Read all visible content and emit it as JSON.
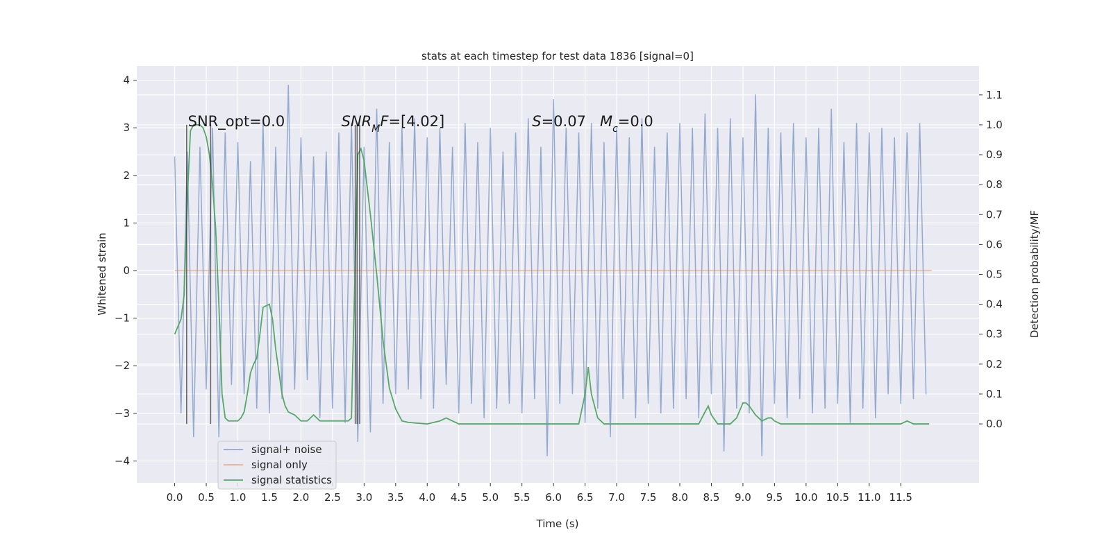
{
  "chart_data": {
    "type": "line",
    "title": "stats at each timestep for test data 1836 [signal=0]",
    "xlabel": "Time (s)",
    "ylabel": "Whitened strain",
    "y2label": "Detection probability/MF",
    "xlim": [
      -0.6,
      12.74
    ],
    "ylim": [
      -4.46,
      4.3
    ],
    "y2lim": [
      -0.197,
      1.197
    ],
    "grid": true,
    "legend": "lower left",
    "xticks": [
      {
        "value": 0,
        "label": "0.0"
      },
      {
        "value": 0.5,
        "label": "0.5"
      },
      {
        "value": 1,
        "label": "1.0"
      },
      {
        "value": 1.5,
        "label": "1.5"
      },
      {
        "value": 2,
        "label": "2.0"
      },
      {
        "value": 2.5,
        "label": "2.5"
      },
      {
        "value": 3,
        "label": "3.0"
      },
      {
        "value": 3.5,
        "label": "3.5"
      },
      {
        "value": 4,
        "label": "4.0"
      },
      {
        "value": 4.5,
        "label": "4.5"
      },
      {
        "value": 5,
        "label": "5.0"
      },
      {
        "value": 5.5,
        "label": "5.5"
      },
      {
        "value": 6,
        "label": "6.0"
      },
      {
        "value": 6.5,
        "label": "6.5"
      },
      {
        "value": 7,
        "label": "7.0"
      },
      {
        "value": 7.5,
        "label": "7.5"
      },
      {
        "value": 8,
        "label": "8.0"
      },
      {
        "value": 8.5,
        "label": "8.5"
      },
      {
        "value": 9,
        "label": "9.0"
      },
      {
        "value": 9.5,
        "label": "9.5"
      },
      {
        "value": 10,
        "label": "10.0"
      },
      {
        "value": 10.5,
        "label": "10.5"
      },
      {
        "value": 11,
        "label": "11.0"
      },
      {
        "value": 11.5,
        "label": "11.5"
      }
    ],
    "yticks": [
      {
        "value": -4,
        "label": "−4"
      },
      {
        "value": -3,
        "label": "−3"
      },
      {
        "value": -2,
        "label": "−2"
      },
      {
        "value": -1,
        "label": "−1"
      },
      0,
      1,
      2,
      3,
      4
    ],
    "y2ticks": [
      {
        "value": 0,
        "label": "0.0"
      },
      {
        "value": 0.1,
        "label": "0.1"
      },
      {
        "value": 0.2,
        "label": "0.2"
      },
      {
        "value": 0.3,
        "label": "0.3"
      },
      {
        "value": 0.4,
        "label": "0.4"
      },
      {
        "value": 0.5,
        "label": "0.5"
      },
      {
        "value": 0.6,
        "label": "0.6"
      },
      {
        "value": 0.7,
        "label": "0.7"
      },
      {
        "value": 0.8,
        "label": "0.8"
      },
      {
        "value": 0.9,
        "label": "0.9"
      },
      {
        "value": 1,
        "label": "1.0"
      },
      {
        "value": 1.1,
        "label": "1.1"
      }
    ],
    "series": [
      {
        "name": "signal+ noise",
        "color": "#4c72b0",
        "opacity": 0.55,
        "x": [
          0,
          0.1,
          0.2,
          0.3,
          0.4,
          0.5,
          0.6,
          0.7,
          0.8,
          0.9,
          1,
          1.1,
          1.2,
          1.3,
          1.4,
          1.5,
          1.6,
          1.7,
          1.8,
          1.9,
          2,
          2.1,
          2.2,
          2.3,
          2.4,
          2.5,
          2.6,
          2.7,
          2.8,
          2.9,
          3,
          3.1,
          3.2,
          3.3,
          3.4,
          3.5,
          3.6,
          3.7,
          3.8,
          3.9,
          4,
          4.1,
          4.2,
          4.3,
          4.4,
          4.5,
          4.6,
          4.7,
          4.8,
          4.9,
          5,
          5.1,
          5.2,
          5.3,
          5.4,
          5.5,
          5.6,
          5.7,
          5.8,
          5.9,
          6,
          6.1,
          6.2,
          6.3,
          6.4,
          6.5,
          6.6,
          6.7,
          6.8,
          6.9,
          7,
          7.1,
          7.2,
          7.3,
          7.4,
          7.5,
          7.6,
          7.7,
          7.8,
          7.9,
          8,
          8.1,
          8.2,
          8.3,
          8.4,
          8.5,
          8.6,
          8.7,
          8.8,
          8.9,
          9,
          9.1,
          9.2,
          9.3,
          9.4,
          9.5,
          9.6,
          9.7,
          9.8,
          9.9,
          10,
          10.1,
          10.2,
          10.3,
          10.4,
          10.5,
          10.6,
          10.7,
          10.8,
          10.9,
          11,
          11.1,
          11.2,
          11.3,
          11.4,
          11.5,
          11.6,
          11.7,
          11.8,
          11.9
        ],
        "values": [
          2.4,
          -3.0,
          2.5,
          -3.5,
          2.6,
          -2.5,
          3.0,
          -3.5,
          2.9,
          -2.4,
          2.7,
          -2.6,
          2.3,
          -2.9,
          3.1,
          -3.0,
          2.6,
          -2.7,
          3.9,
          -2.5,
          2.8,
          -2.3,
          2.4,
          -3.1,
          2.5,
          -2.9,
          2.9,
          -3.2,
          3.1,
          -3.6,
          2.6,
          -3.4,
          3.4,
          -2.8,
          2.7,
          -2.6,
          3.0,
          -2.5,
          3.2,
          -2.7,
          2.8,
          -2.9,
          3.0,
          -2.4,
          2.6,
          -3.0,
          3.1,
          -2.8,
          2.7,
          -3.1,
          3.0,
          -2.9,
          2.5,
          -2.8,
          2.9,
          -3.0,
          3.2,
          -2.7,
          2.6,
          -3.9,
          3.6,
          -2.8,
          3.0,
          -2.6,
          2.9,
          -3.2,
          3.1,
          -2.9,
          2.7,
          -3.5,
          3.0,
          -2.7,
          2.8,
          -3.1,
          3.2,
          -2.8,
          2.6,
          -3.0,
          2.9,
          -2.9,
          3.1,
          -2.7,
          3.0,
          -3.1,
          3.3,
          -2.6,
          3.0,
          -3.8,
          3.2,
          -2.9,
          2.8,
          -3.0,
          3.7,
          -3.9,
          3.0,
          -2.8,
          2.9,
          -3.1,
          3.1,
          -2.7,
          2.8,
          -3.0,
          3.0,
          -2.9,
          3.4,
          -2.8,
          2.7,
          -3.2,
          3.1,
          -2.9,
          2.9,
          -3.1,
          3.0,
          -2.6,
          2.8,
          -2.8,
          2.9,
          -2.7,
          3.1,
          -2.6
        ]
      },
      {
        "name": "signal only",
        "color": "#dd8452",
        "opacity": 0.55,
        "x": [
          0,
          11.99
        ],
        "values": [
          0,
          0
        ]
      },
      {
        "name": "signal statistics",
        "color": "#55a868",
        "opacity": 1,
        "axis": "y2",
        "x": [
          0,
          0.1,
          0.15,
          0.2,
          0.25,
          0.3,
          0.4,
          0.45,
          0.5,
          0.55,
          0.6,
          0.65,
          0.7,
          0.75,
          0.8,
          0.85,
          0.9,
          1.0,
          1.05,
          1.1,
          1.15,
          1.2,
          1.25,
          1.3,
          1.35,
          1.4,
          1.5,
          1.55,
          1.6,
          1.7,
          1.75,
          1.8,
          1.9,
          2.0,
          2.1,
          2.2,
          2.3,
          2.4,
          2.5,
          2.6,
          2.65,
          2.75,
          2.8,
          2.9,
          2.95,
          3.0,
          3.1,
          3.2,
          3.3,
          3.4,
          3.5,
          3.6,
          3.7,
          4.0,
          4.2,
          4.3,
          4.4,
          4.5,
          5.5,
          6.0,
          6.4,
          6.5,
          6.55,
          6.6,
          6.7,
          6.8,
          8.3,
          8.4,
          8.45,
          8.5,
          8.6,
          8.8,
          8.9,
          9.0,
          9.05,
          9.1,
          9.2,
          9.3,
          9.4,
          9.45,
          9.5,
          9.6,
          10.0,
          11.5,
          11.6,
          11.7,
          11.95
        ],
        "values": [
          0.3,
          0.35,
          0.43,
          0.75,
          0.98,
          1.0,
          1.0,
          0.99,
          0.96,
          0.9,
          0.8,
          0.65,
          0.4,
          0.1,
          0.02,
          0.01,
          0.01,
          0.01,
          0.02,
          0.04,
          0.1,
          0.17,
          0.2,
          0.22,
          0.3,
          0.39,
          0.4,
          0.35,
          0.25,
          0.1,
          0.06,
          0.04,
          0.03,
          0.01,
          0.01,
          0.03,
          0.01,
          0.01,
          0.01,
          0.01,
          0.01,
          0.01,
          0.02,
          0.9,
          0.92,
          0.88,
          0.7,
          0.5,
          0.28,
          0.12,
          0.05,
          0.01,
          0.005,
          0,
          0.01,
          0.02,
          0.01,
          0,
          0,
          0,
          0,
          0.1,
          0.19,
          0.1,
          0.02,
          0,
          0,
          0.04,
          0.06,
          0.03,
          0,
          0,
          0.02,
          0.07,
          0.07,
          0.06,
          0.03,
          0.01,
          0.02,
          0.02,
          0.01,
          0,
          0,
          0,
          0.01,
          0,
          0
        ]
      }
    ],
    "vlines": {
      "color": "#333333",
      "x": [
        0.19,
        0.57,
        2.86,
        2.89,
        2.93
      ],
      "y2": [
        0,
        1.0
      ]
    },
    "annotations": [
      {
        "x": 0.21,
        "y": 3.03,
        "parts": [
          {
            "t": "SNR_opt=0.0"
          }
        ]
      },
      {
        "x": 2.64,
        "y": 3.03,
        "parts": [
          {
            "t": "SNR",
            "i": true
          },
          {
            "t": "M",
            "i": true,
            "sub": true
          },
          {
            "t": "F",
            "i": true
          },
          {
            "t": "=[4.02]"
          }
        ]
      },
      {
        "x": 5.66,
        "y": 3.03,
        "parts": [
          {
            "t": "S",
            "i": true
          },
          {
            "t": "=0.07   "
          },
          {
            "t": "M",
            "i": true
          },
          {
            "t": "c",
            "i": true,
            "sub": true
          },
          {
            "t": "=0.0"
          }
        ]
      }
    ]
  }
}
